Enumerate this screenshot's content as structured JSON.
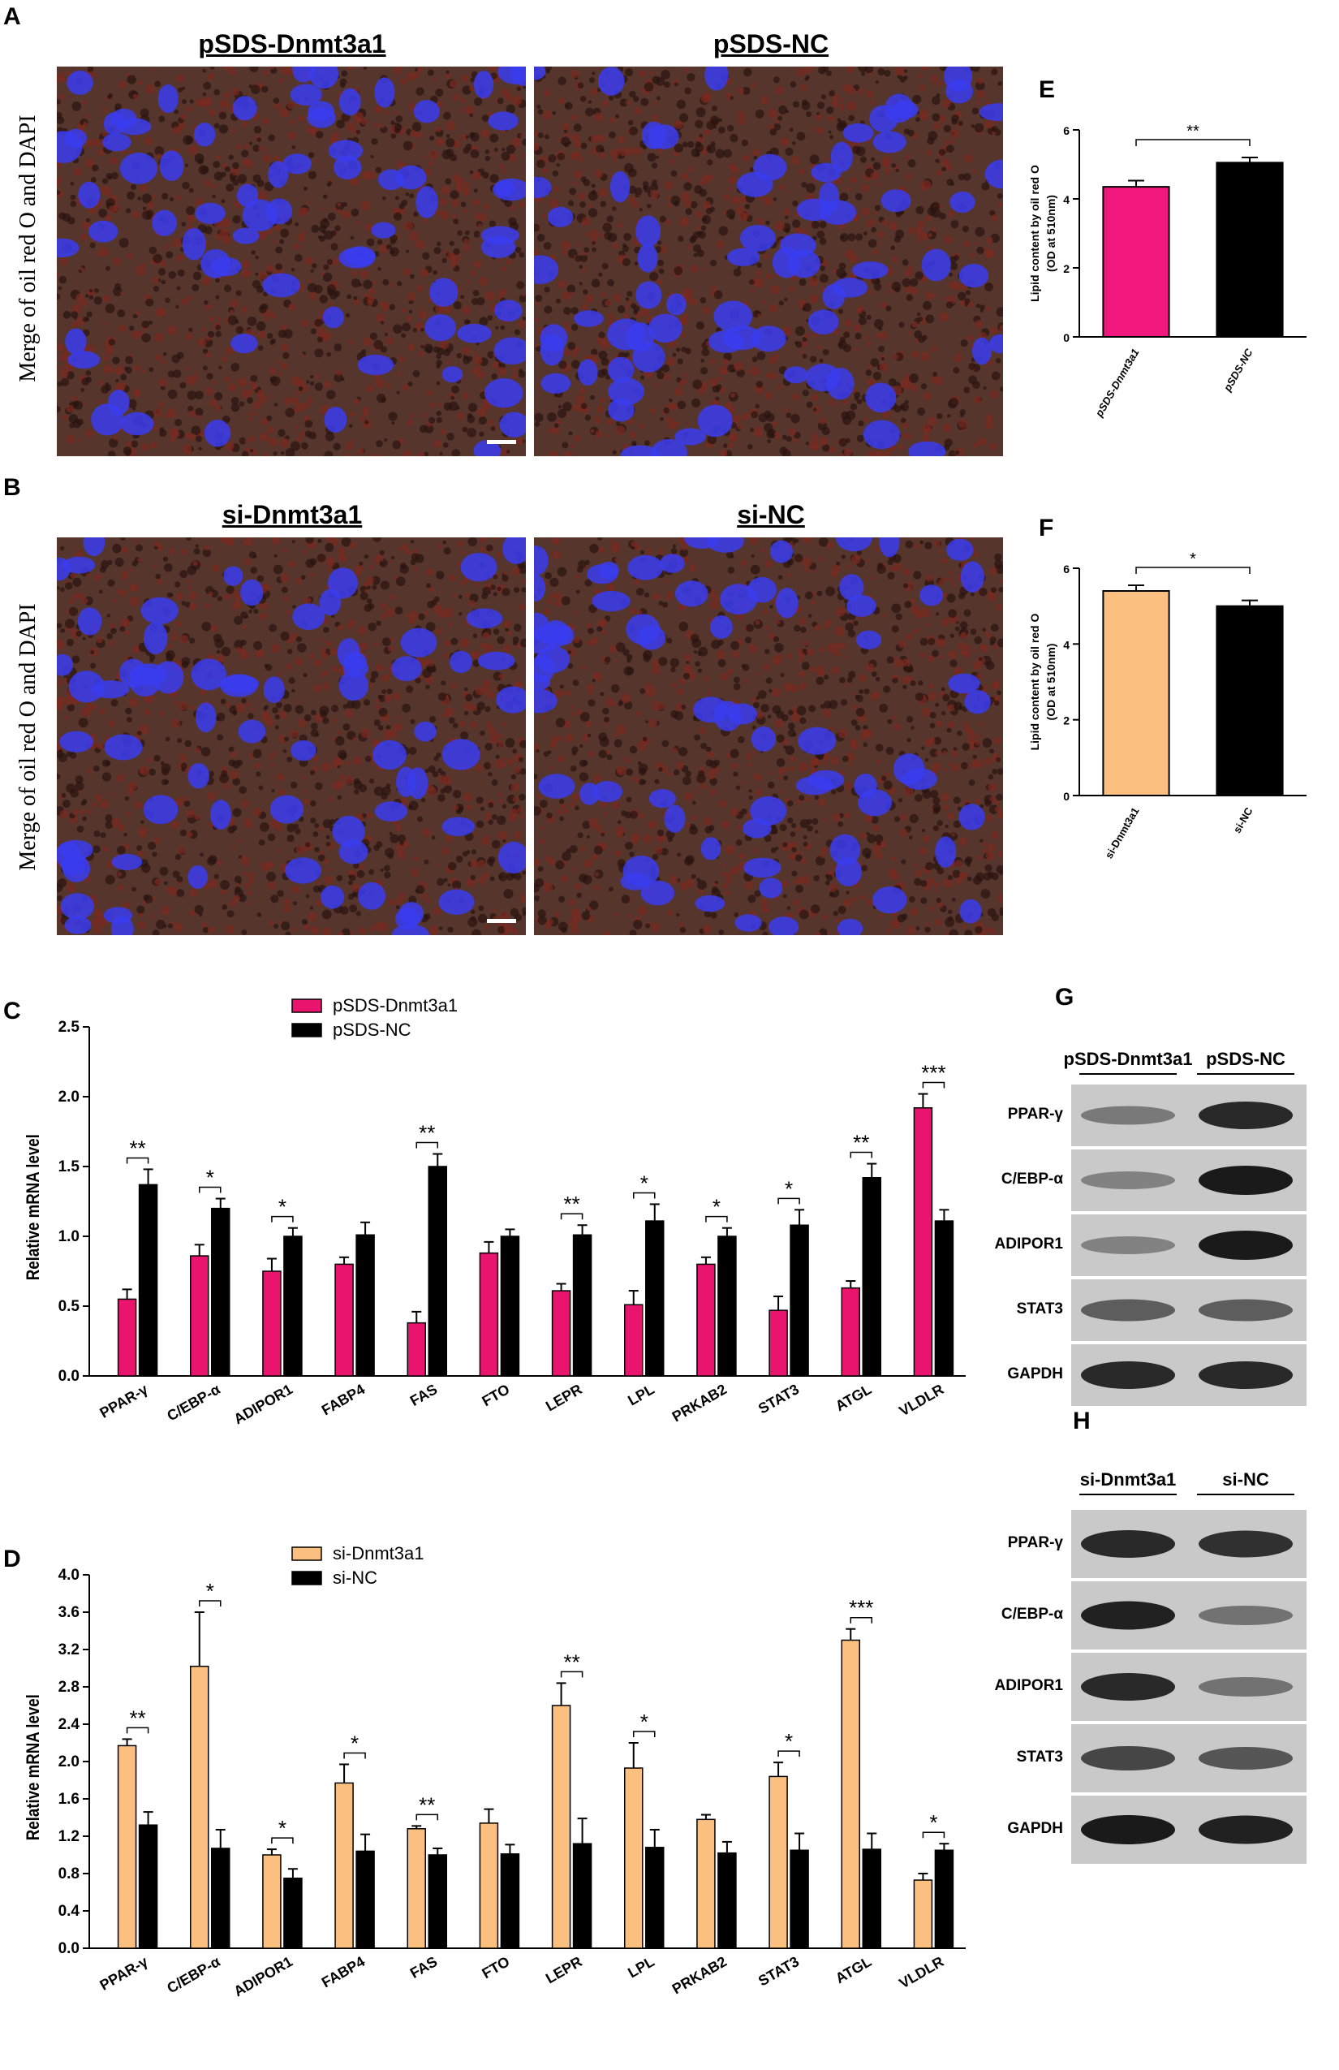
{
  "figure": {
    "panel_A": {
      "letter": "A",
      "side_label": "Merge of oil red O and DAPI",
      "titles": [
        "pSDS-Dnmt3a1",
        "pSDS-NC"
      ]
    },
    "panel_B": {
      "letter": "B",
      "side_label": "Merge of oil red O and DAPI",
      "titles": [
        "si-Dnmt3a1",
        "si-NC"
      ]
    },
    "panel_G": {
      "letter": "G",
      "headers": [
        "pSDS-Dnmt3a1",
        "pSDS-NC"
      ],
      "proteins": [
        "PPAR-γ",
        "C/EBP-α",
        "ADIPOR1",
        "STAT3",
        "GAPDH"
      ],
      "band_intensity": [
        [
          0.35,
          0.9
        ],
        [
          0.3,
          1.0
        ],
        [
          0.3,
          1.0
        ],
        [
          0.55,
          0.55
        ],
        [
          0.9,
          0.9
        ]
      ]
    },
    "panel_H": {
      "letter": "H",
      "headers": [
        "si-Dnmt3a1",
        "si-NC"
      ],
      "proteins": [
        "PPAR-γ",
        "C/EBP-α",
        "ADIPOR1",
        "STAT3",
        "GAPDH"
      ],
      "band_intensity": [
        [
          0.9,
          0.85
        ],
        [
          0.95,
          0.4
        ],
        [
          0.9,
          0.4
        ],
        [
          0.7,
          0.6
        ],
        [
          1.0,
          0.95
        ]
      ]
    }
  },
  "chart_data": [
    {
      "id": "E",
      "letter": "E",
      "type": "bar",
      "categories": [
        "pSDS-Dnmt3a1",
        "pSDS-NC"
      ],
      "values": [
        4.35,
        5.05
      ],
      "errors": [
        0.18,
        0.15
      ],
      "colors": [
        "#f0187c",
        "#000000"
      ],
      "ylabel_lines": [
        "Lipid content by oil red O",
        "(OD at 510nm)"
      ],
      "yticks": [
        "0",
        "2",
        "4",
        "6"
      ],
      "ylim": [
        0,
        6
      ],
      "significance": [
        {
          "from": 0,
          "to": 1,
          "label": "**"
        }
      ],
      "italic_ticks": true
    },
    {
      "id": "F",
      "letter": "F",
      "type": "bar",
      "categories": [
        "si-Dnmt3a1",
        "si-NC"
      ],
      "values": [
        5.4,
        5.0
      ],
      "errors": [
        0.15,
        0.15
      ],
      "colors": [
        "#fbbf80",
        "#000000"
      ],
      "ylabel_lines": [
        "Lipid content by oil red O",
        "(OD at 510nm)"
      ],
      "yticks": [
        "0",
        "2",
        "4",
        "6"
      ],
      "ylim": [
        0,
        6
      ],
      "significance": [
        {
          "from": 0,
          "to": 1,
          "label": "*"
        }
      ],
      "italic_ticks": false
    },
    {
      "id": "C",
      "letter": "C",
      "type": "bar",
      "categories": [
        "PPAR-γ",
        "C/EBP-α",
        "ADIPOR1",
        "FABP4",
        "FAS",
        "FTO",
        "LEPR",
        "LPL",
        "PRKAB2",
        "STAT3",
        "ATGL",
        "VLDLR"
      ],
      "series": [
        {
          "name": "pSDS-Dnmt3a1",
          "color": "#e8146e",
          "values": [
            0.55,
            0.86,
            0.75,
            0.8,
            0.38,
            0.88,
            0.61,
            0.51,
            0.8,
            0.47,
            0.63,
            1.92
          ],
          "errors": [
            0.07,
            0.08,
            0.09,
            0.05,
            0.08,
            0.08,
            0.05,
            0.1,
            0.05,
            0.1,
            0.05,
            0.1
          ]
        },
        {
          "name": "pSDS-NC",
          "color": "#000000",
          "values": [
            1.37,
            1.2,
            1.0,
            1.01,
            1.5,
            1.0,
            1.01,
            1.11,
            1.0,
            1.08,
            1.42,
            1.11
          ],
          "errors": [
            0.11,
            0.07,
            0.06,
            0.09,
            0.09,
            0.05,
            0.07,
            0.12,
            0.06,
            0.11,
            0.1,
            0.08
          ]
        }
      ],
      "significance": [
        "**",
        "*",
        "*",
        "",
        "**",
        "",
        "**",
        "*",
        "*",
        "*",
        "**",
        "***"
      ],
      "ylabel": "Relative mRNA level",
      "yticks": [
        "0.0",
        "0.5",
        "1.0",
        "1.5",
        "2.0",
        "2.5"
      ],
      "ylim": [
        0,
        2.5
      ]
    },
    {
      "id": "D",
      "letter": "D",
      "type": "bar",
      "categories": [
        "PPAR-γ",
        "C/EBP-α",
        "ADIPOR1",
        "FABP4",
        "FAS",
        "FTO",
        "LEPR",
        "LPL",
        "PRKAB2",
        "STAT3",
        "ATGL",
        "VLDLR"
      ],
      "series": [
        {
          "name": "si-Dnmt3a1",
          "color": "#fbbf80",
          "values": [
            2.17,
            3.02,
            1.0,
            1.77,
            1.28,
            1.34,
            2.6,
            1.93,
            1.38,
            1.84,
            3.3,
            0.73
          ],
          "errors": [
            0.07,
            0.58,
            0.06,
            0.2,
            0.03,
            0.15,
            0.24,
            0.27,
            0.05,
            0.15,
            0.12,
            0.07
          ]
        },
        {
          "name": "si-NC",
          "color": "#000000",
          "values": [
            1.32,
            1.07,
            0.75,
            1.04,
            1.0,
            1.01,
            1.12,
            1.08,
            1.02,
            1.05,
            1.06,
            1.05
          ],
          "errors": [
            0.14,
            0.2,
            0.1,
            0.18,
            0.07,
            0.1,
            0.27,
            0.19,
            0.12,
            0.18,
            0.17,
            0.07
          ]
        }
      ],
      "significance": [
        "**",
        "*",
        "*",
        "*",
        "**",
        "",
        "**",
        "*",
        "",
        "*",
        "***",
        "*"
      ],
      "ylabel": "Relative mRNA level",
      "yticks": [
        "0.0",
        "0.4",
        "0.8",
        "1.2",
        "1.6",
        "2.0",
        "2.4",
        "2.8",
        "3.2",
        "3.6",
        "4.0"
      ],
      "ylim": [
        0,
        4.0
      ]
    }
  ]
}
